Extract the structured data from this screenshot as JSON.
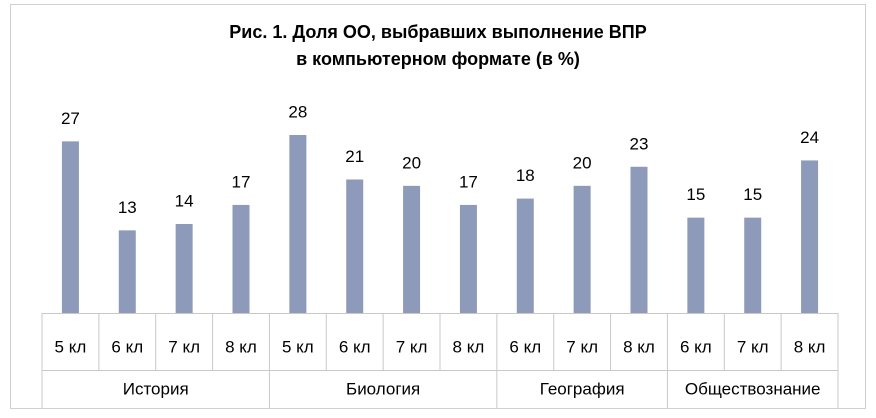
{
  "chart_data": {
    "type": "bar",
    "title": [
      "Рис. 1. Доля ОО, выбравших выполнение ВПР",
      "в компьютерном формате (в %)"
    ],
    "groups": [
      {
        "name": "История",
        "categories": [
          "5 кл",
          "6 кл",
          "7 кл",
          "8 кл"
        ]
      },
      {
        "name": "Биология",
        "categories": [
          "5 кл",
          "6 кл",
          "7 кл",
          "8 кл"
        ]
      },
      {
        "name": "География",
        "categories": [
          "6 кл",
          "7 кл",
          "8 кл"
        ]
      },
      {
        "name": "Обществознание",
        "categories": [
          "6 кл",
          "7 кл",
          "8 кл"
        ]
      }
    ],
    "values": [
      27,
      13,
      14,
      17,
      28,
      21,
      20,
      17,
      18,
      20,
      23,
      15,
      15,
      24
    ],
    "color": "#8e9aba"
  }
}
